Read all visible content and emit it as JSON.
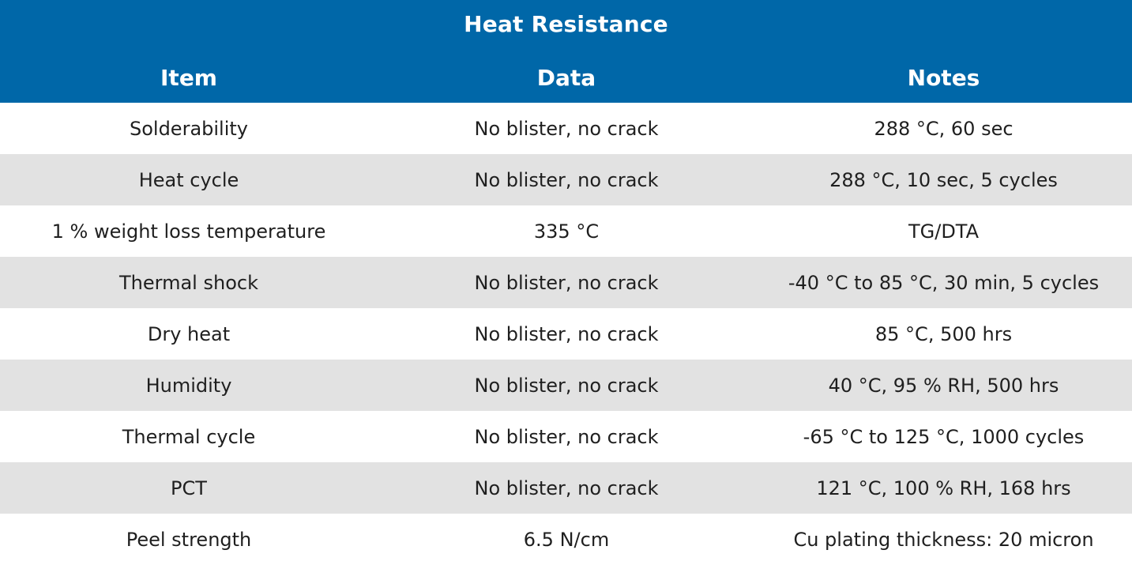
{
  "title": "Heat Resistance",
  "columns": [
    "Item",
    "Data",
    "Notes"
  ],
  "rows": [
    [
      "Solderability",
      "No blister, no crack",
      "288 °C, 60 sec"
    ],
    [
      "Heat cycle",
      "No blister, no crack",
      "288 °C, 10 sec, 5 cycles"
    ],
    [
      "1 % weight loss temperature",
      "335 °C",
      "TG/DTA"
    ],
    [
      "Thermal shock",
      "No blister, no crack",
      "-40 °C to 85 °C, 30 min, 5 cycles"
    ],
    [
      "Dry heat",
      "No blister, no crack",
      "85 °C, 500 hrs"
    ],
    [
      "Humidity",
      "No blister, no crack",
      "40 °C, 95 % RH, 500 hrs"
    ],
    [
      "Thermal cycle",
      "No blister, no crack",
      "-65 °C to 125 °C, 1000 cycles"
    ],
    [
      "PCT",
      "No blister, no crack",
      "121 °C, 100 % RH, 168 hrs"
    ],
    [
      "Peel strength",
      "6.5 N/cm",
      "Cu plating thickness: 20 micron"
    ]
  ],
  "colors": {
    "header_bg": "#0067a8",
    "header_text": "#ffffff",
    "row_alt_bg": "#e2e2e2",
    "row_bg": "#ffffff",
    "cell_text": "#1f1f1f"
  }
}
